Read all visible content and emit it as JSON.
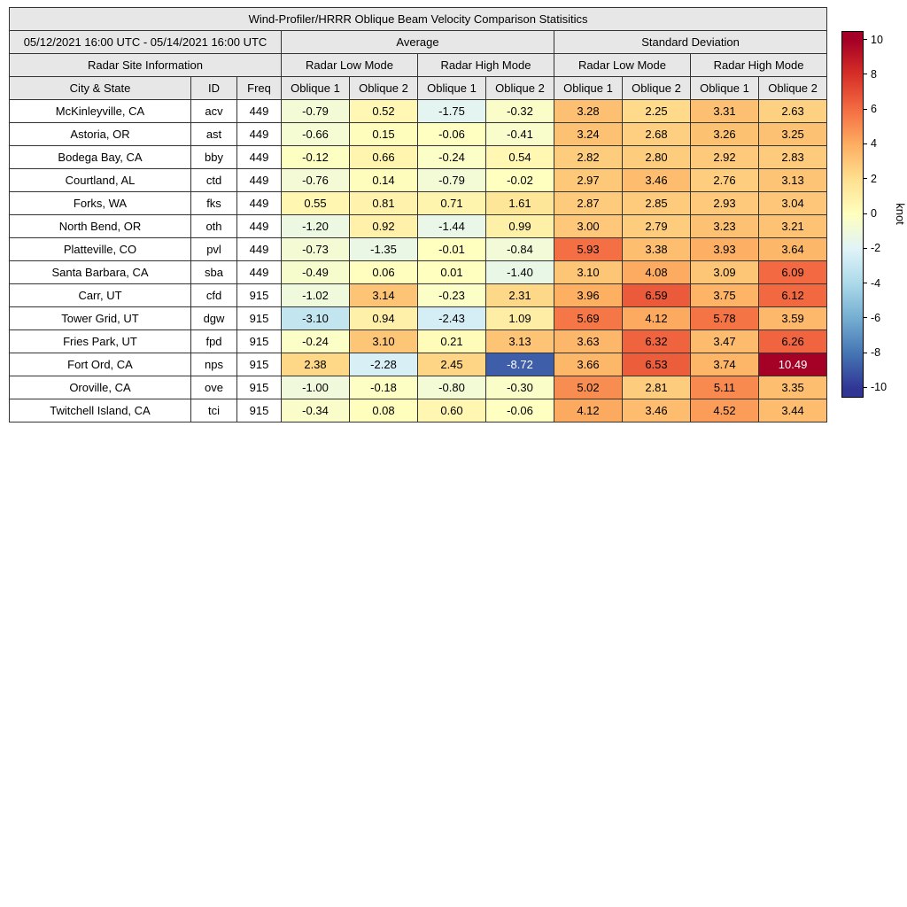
{
  "figure_title": "Wind-Profiler/HRRR Oblique Beam Velocity Comparison Statisitics",
  "table_header": {
    "date_range": "05/12/2021 16:00 UTC - 05/14/2021 16:00 UTC",
    "average": "Average",
    "standard_deviation": "Standard Deviation",
    "radar_site_information": "Radar Site Information",
    "radar_low_mode": "Radar Low Mode",
    "radar_high_mode": "Radar High Mode",
    "city_state": "City & State",
    "id": "ID",
    "freq": "Freq",
    "oblique_1": "Oblique 1",
    "oblique_2": "Oblique 2"
  },
  "colorbar": {
    "label": "knot",
    "vmin": -10.49,
    "vmax": 10.49,
    "ticks": [
      10,
      8,
      6,
      4,
      2,
      0,
      -2,
      -4,
      -6,
      -8,
      -10
    ],
    "colormap_stops": [
      [
        -10,
        "#313695"
      ],
      [
        -8,
        "#4575b4"
      ],
      [
        -6,
        "#74add1"
      ],
      [
        -4,
        "#abd9e9"
      ],
      [
        -2,
        "#e0f3f8"
      ],
      [
        0,
        "#ffffbf"
      ],
      [
        2,
        "#fee090"
      ],
      [
        4,
        "#fdae61"
      ],
      [
        6,
        "#f46d43"
      ],
      [
        8,
        "#d73027"
      ],
      [
        10,
        "#a50026"
      ]
    ]
  },
  "chart_data": {
    "type": "heatmap",
    "title": "Wind-Profiler/HRRR Oblique Beam Velocity Comparison Statisitics",
    "subtitle_period": "05/12/2021 16:00 UTC - 05/14/2021 16:00 UTC",
    "unit": "knot",
    "color_range": [
      -10.49,
      10.49
    ],
    "legend_position": "right",
    "value_columns": [
      "Average Radar Low Mode Oblique 1",
      "Average Radar Low Mode Oblique 2",
      "Average Radar High Mode Oblique 1",
      "Average Radar High Mode Oblique 2",
      "Standard Deviation Radar Low Mode Oblique 1",
      "Standard Deviation Radar Low Mode Oblique 2",
      "Standard Deviation Radar High Mode Oblique 1",
      "Standard Deviation Radar High Mode Oblique 2"
    ],
    "rows": [
      {
        "city": "McKinleyville, CA",
        "id": "acv",
        "freq": "449",
        "values": [
          -0.79,
          0.52,
          -1.75,
          -0.32,
          3.28,
          2.25,
          3.31,
          2.63
        ]
      },
      {
        "city": "Astoria, OR",
        "id": "ast",
        "freq": "449",
        "values": [
          -0.66,
          0.15,
          -0.06,
          -0.41,
          3.24,
          2.68,
          3.26,
          3.25
        ]
      },
      {
        "city": "Bodega Bay, CA",
        "id": "bby",
        "freq": "449",
        "values": [
          -0.12,
          0.66,
          -0.24,
          0.54,
          2.82,
          2.8,
          2.92,
          2.83
        ]
      },
      {
        "city": "Courtland, AL",
        "id": "ctd",
        "freq": "449",
        "values": [
          -0.76,
          0.14,
          -0.79,
          -0.02,
          2.97,
          3.46,
          2.76,
          3.13
        ]
      },
      {
        "city": "Forks, WA",
        "id": "fks",
        "freq": "449",
        "values": [
          0.55,
          0.81,
          0.71,
          1.61,
          2.87,
          2.85,
          2.93,
          3.04
        ]
      },
      {
        "city": "North Bend, OR",
        "id": "oth",
        "freq": "449",
        "values": [
          -1.2,
          0.92,
          -1.44,
          0.99,
          3.0,
          2.79,
          3.23,
          3.21
        ]
      },
      {
        "city": "Platteville, CO",
        "id": "pvl",
        "freq": "449",
        "values": [
          -0.73,
          -1.35,
          -0.01,
          -0.84,
          5.93,
          3.38,
          3.93,
          3.64
        ]
      },
      {
        "city": "Santa Barbara, CA",
        "id": "sba",
        "freq": "449",
        "values": [
          -0.49,
          0.06,
          0.01,
          -1.4,
          3.1,
          4.08,
          3.09,
          6.09
        ]
      },
      {
        "city": "Carr, UT",
        "id": "cfd",
        "freq": "915",
        "values": [
          -1.02,
          3.14,
          -0.23,
          2.31,
          3.96,
          6.59,
          3.75,
          6.12
        ]
      },
      {
        "city": "Tower Grid, UT",
        "id": "dgw",
        "freq": "915",
        "values": [
          -3.1,
          0.94,
          -2.43,
          1.09,
          5.69,
          4.12,
          5.78,
          3.59
        ]
      },
      {
        "city": "Fries Park, UT",
        "id": "fpd",
        "freq": "915",
        "values": [
          -0.24,
          3.1,
          0.21,
          3.13,
          3.63,
          6.32,
          3.47,
          6.26
        ]
      },
      {
        "city": "Fort Ord, CA",
        "id": "nps",
        "freq": "915",
        "values": [
          2.38,
          -2.28,
          2.45,
          -8.72,
          3.66,
          6.53,
          3.74,
          10.49
        ]
      },
      {
        "city": "Oroville, CA",
        "id": "ove",
        "freq": "915",
        "values": [
          -1.0,
          -0.18,
          -0.8,
          -0.3,
          5.02,
          2.81,
          5.11,
          3.35
        ]
      },
      {
        "city": "Twitchell Island, CA",
        "id": "tci",
        "freq": "915",
        "values": [
          -0.34,
          0.08,
          0.6,
          -0.06,
          4.12,
          3.46,
          4.52,
          3.44
        ]
      }
    ]
  }
}
